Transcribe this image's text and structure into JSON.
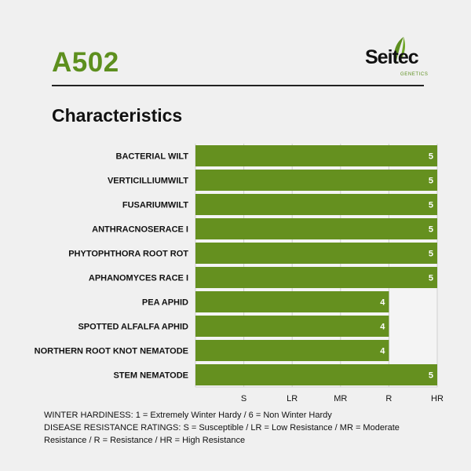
{
  "header": {
    "product_code": "A502",
    "brand": {
      "wordmark": "Seitec",
      "sub": "GENETICS",
      "icon": "leaf-icon"
    },
    "section_title": "Characteristics"
  },
  "colors": {
    "accent_green": "#5d8f1e",
    "bar_green": "#65901f",
    "background": "#f0f0f0",
    "text_dark": "#111111"
  },
  "chart_data": {
    "type": "bar",
    "orientation": "horizontal",
    "title": "",
    "xlabel": "",
    "ylabel": "",
    "categories": [
      "BACTERIAL WILT",
      "VERTICILLIUMWILT",
      "FUSARIUMWILT",
      "ANTHRACNOSERACE I",
      "PHYTOPHTHORA ROOT ROT",
      "APHANOMYCES RACE I",
      "PEA APHID",
      "SPOTTED ALFALFA APHID",
      "NORTHERN ROOT KNOT NEMATODE",
      "STEM NEMATODE"
    ],
    "values": [
      5,
      5,
      5,
      5,
      5,
      5,
      4,
      4,
      4,
      5
    ],
    "x_ticks": [
      "S",
      "LR",
      "MR",
      "R",
      "HR"
    ],
    "x_tick_values": [
      1,
      2,
      3,
      4,
      5
    ],
    "xlim": [
      0,
      5
    ],
    "grid": true,
    "data_labels": true
  },
  "legend": {
    "winter_hardiness": "WINTER HARDINESS: 1 = Extremely Winter Hardy / 6 = Non Winter Hardy",
    "disease_resistance": "DISEASE RESISTANCE RATINGS: S = Susceptible / LR = Low Resistance / MR = Moderate Resistance / R = Resistance / HR = High Resistance"
  }
}
